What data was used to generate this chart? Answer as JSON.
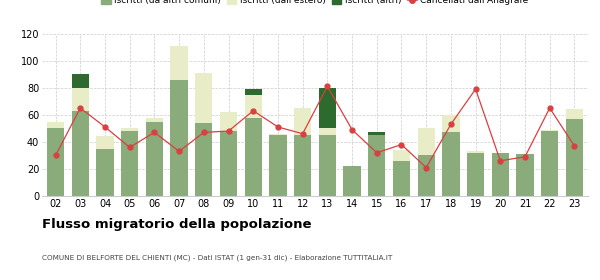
{
  "years": [
    "02",
    "03",
    "04",
    "05",
    "06",
    "07",
    "08",
    "09",
    "10",
    "11",
    "12",
    "13",
    "14",
    "15",
    "16",
    "17",
    "18",
    "19",
    "20",
    "21",
    "22",
    "23"
  ],
  "iscritti_comuni": [
    50,
    63,
    35,
    48,
    55,
    86,
    54,
    48,
    58,
    45,
    45,
    45,
    22,
    45,
    26,
    30,
    47,
    32,
    32,
    31,
    48,
    57
  ],
  "iscritti_estero": [
    5,
    17,
    9,
    2,
    3,
    25,
    37,
    14,
    17,
    1,
    20,
    5,
    0,
    0,
    8,
    20,
    13,
    1,
    0,
    0,
    1,
    7
  ],
  "iscritti_altri": [
    0,
    10,
    0,
    0,
    0,
    0,
    0,
    0,
    4,
    0,
    0,
    30,
    0,
    2,
    0,
    0,
    0,
    0,
    0,
    0,
    0,
    0
  ],
  "cancellati": [
    30,
    65,
    51,
    36,
    47,
    33,
    47,
    48,
    63,
    51,
    46,
    81,
    49,
    32,
    38,
    21,
    53,
    79,
    26,
    29,
    65,
    37
  ],
  "color_comuni": "#8aab7a",
  "color_estero": "#e8edc8",
  "color_altri": "#2d6a2d",
  "color_cancellati": "#d94040",
  "title": "Flusso migratorio della popolazione",
  "subtitle": "COMUNE DI BELFORTE DEL CHIENTI (MC) - Dati ISTAT (1 gen-31 dic) - Elaborazione TUTTITALIA.IT",
  "legend_labels": [
    "Iscritti (da altri comuni)",
    "Iscritti (dall'estero)",
    "Iscritti (altri)",
    "Cancellati dall'Anagrafe"
  ],
  "ylim": [
    0,
    120
  ],
  "yticks": [
    0,
    20,
    40,
    60,
    80,
    100,
    120
  ]
}
